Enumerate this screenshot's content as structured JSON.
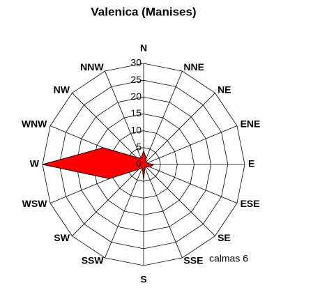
{
  "chart_data": {
    "type": "radar",
    "title": "Valenica (Manises)",
    "categories": [
      "N",
      "NNE",
      "NE",
      "ENE",
      "E",
      "ESE",
      "SE",
      "SSE",
      "S",
      "SSW",
      "SW",
      "WSW",
      "W",
      "WNW",
      "NW",
      "NNW"
    ],
    "series": [
      {
        "color": "#ff0000",
        "values": [
          4,
          2,
          1,
          1,
          3,
          2,
          1,
          1,
          4.5,
          1,
          2,
          11,
          30,
          13,
          3,
          2
        ]
      }
    ],
    "ylim": [
      0,
      30
    ],
    "yticks": [
      0,
      5,
      10,
      15,
      20,
      25,
      30
    ],
    "grid": true,
    "annotation": "calmas 6"
  }
}
